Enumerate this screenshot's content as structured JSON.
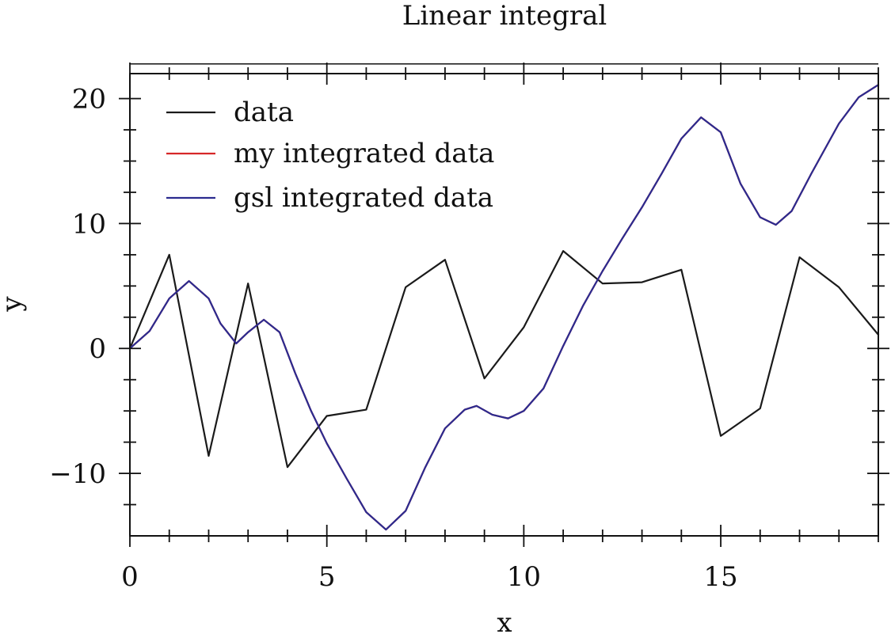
{
  "chart_data": {
    "type": "line",
    "title": "Linear integral",
    "xlabel": "x",
    "ylabel": "y",
    "xlim": [
      0,
      19
    ],
    "ylim": [
      -15,
      22
    ],
    "x_ticks": [
      0,
      5,
      10,
      15
    ],
    "y_ticks": [
      -10,
      0,
      10,
      20
    ],
    "x_tick_labels": [
      "0",
      "5",
      "10",
      "15"
    ],
    "y_tick_labels": [
      "−10",
      "0",
      "10",
      "20"
    ],
    "grid": false,
    "legend_position": "top-left",
    "series": [
      {
        "name": "data",
        "color": "#1a1a1a",
        "x": [
          0,
          1,
          2,
          3,
          4,
          5,
          6,
          7,
          8,
          9,
          10,
          11,
          12,
          13,
          14,
          15,
          16,
          17,
          18,
          19
        ],
        "y": [
          0,
          7.5,
          -8.6,
          5.2,
          -9.5,
          -5.4,
          -4.9,
          4.9,
          7.1,
          -2.4,
          1.7,
          7.8,
          5.2,
          5.3,
          6.3,
          -7.0,
          -4.8,
          7.3,
          4.9,
          1.1
        ]
      },
      {
        "name": "my integrated data",
        "color": "#d62728",
        "x": [
          0,
          0.5,
          1,
          1.5,
          2,
          2.3,
          2.7,
          3,
          3.4,
          3.8,
          4.2,
          4.6,
          5,
          5.5,
          6,
          6.5,
          7,
          7.5,
          8,
          8.5,
          8.8,
          9.2,
          9.6,
          10,
          10.5,
          11,
          11.5,
          12,
          12.5,
          13,
          13.5,
          14,
          14.5,
          15,
          15.5,
          16,
          16.4,
          16.8,
          17.3,
          18,
          18.5,
          19
        ],
        "y": [
          0,
          1.4,
          4.0,
          5.4,
          4.0,
          2.0,
          0.4,
          1.3,
          2.3,
          1.3,
          -2.0,
          -5.0,
          -7.6,
          -10.4,
          -13.1,
          -14.5,
          -13.0,
          -9.5,
          -6.4,
          -4.9,
          -4.6,
          -5.3,
          -5.6,
          -5.0,
          -3.2,
          0.2,
          3.4,
          6.2,
          8.8,
          11.3,
          14.0,
          16.8,
          18.5,
          17.3,
          13.2,
          10.5,
          9.9,
          11.0,
          14.0,
          18.0,
          20.1,
          21.1
        ]
      },
      {
        "name": "gsl integrated data",
        "color": "#2b2b8f",
        "x": [
          0,
          0.5,
          1,
          1.5,
          2,
          2.3,
          2.7,
          3,
          3.4,
          3.8,
          4.2,
          4.6,
          5,
          5.5,
          6,
          6.5,
          7,
          7.5,
          8,
          8.5,
          8.8,
          9.2,
          9.6,
          10,
          10.5,
          11,
          11.5,
          12,
          12.5,
          13,
          13.5,
          14,
          14.5,
          15,
          15.5,
          16,
          16.4,
          16.8,
          17.3,
          18,
          18.5,
          19
        ],
        "y": [
          0,
          1.4,
          4.0,
          5.4,
          4.0,
          2.0,
          0.4,
          1.3,
          2.3,
          1.3,
          -2.0,
          -5.0,
          -7.6,
          -10.4,
          -13.1,
          -14.5,
          -13.0,
          -9.5,
          -6.4,
          -4.9,
          -4.6,
          -5.3,
          -5.6,
          -5.0,
          -3.2,
          0.2,
          3.4,
          6.2,
          8.8,
          11.3,
          14.0,
          16.8,
          18.5,
          17.3,
          13.2,
          10.5,
          9.9,
          11.0,
          14.0,
          18.0,
          20.1,
          21.1
        ]
      }
    ]
  }
}
